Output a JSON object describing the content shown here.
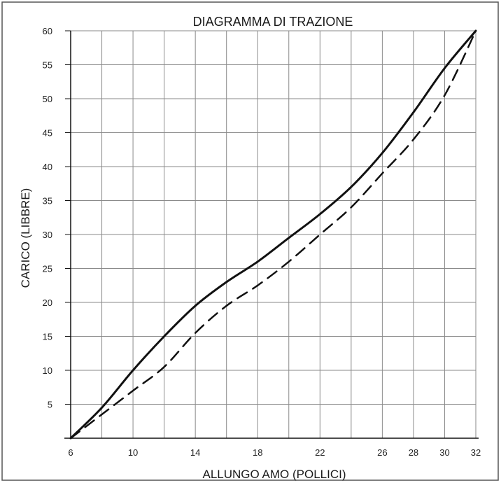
{
  "chart_data": {
    "type": "line",
    "title": "DIAGRAMMA DI TRAZIONE",
    "xlabel": "ALLUNGO AMO (POLLICI)",
    "ylabel": "CARICO (LIBBRE)",
    "xlim": [
      6,
      32
    ],
    "ylim": [
      0,
      60
    ],
    "x_ticks": [
      6,
      10,
      14,
      18,
      22,
      26,
      28,
      30,
      32
    ],
    "x_tick_labels": [
      "6",
      "10",
      "14",
      "18",
      "22",
      "26",
      "28",
      "30",
      "32"
    ],
    "y_ticks": [
      5,
      10,
      15,
      20,
      25,
      30,
      35,
      40,
      45,
      50,
      55,
      60
    ],
    "y_tick_labels": [
      "5",
      "10",
      "15",
      "20",
      "25",
      "30",
      "35",
      "40",
      "45",
      "50",
      "55",
      "60"
    ],
    "grid": true,
    "series": [
      {
        "style": "solid",
        "color": "#111111",
        "x": [
          6,
          8,
          10,
          12,
          14,
          16,
          18,
          20,
          22,
          24,
          26,
          28,
          30,
          32
        ],
        "y": [
          0,
          4.5,
          10,
          15,
          19.5,
          23,
          26,
          29.5,
          33,
          37,
          42,
          48,
          54.5,
          60
        ]
      },
      {
        "style": "dashed",
        "color": "#111111",
        "x": [
          6,
          8,
          10,
          12,
          14,
          16,
          18,
          20,
          22,
          24,
          26,
          28,
          30,
          32
        ],
        "y": [
          0,
          3.5,
          7,
          10.5,
          15.5,
          19.5,
          22.5,
          26,
          30,
          34,
          39,
          44,
          50.5,
          60
        ]
      }
    ]
  }
}
